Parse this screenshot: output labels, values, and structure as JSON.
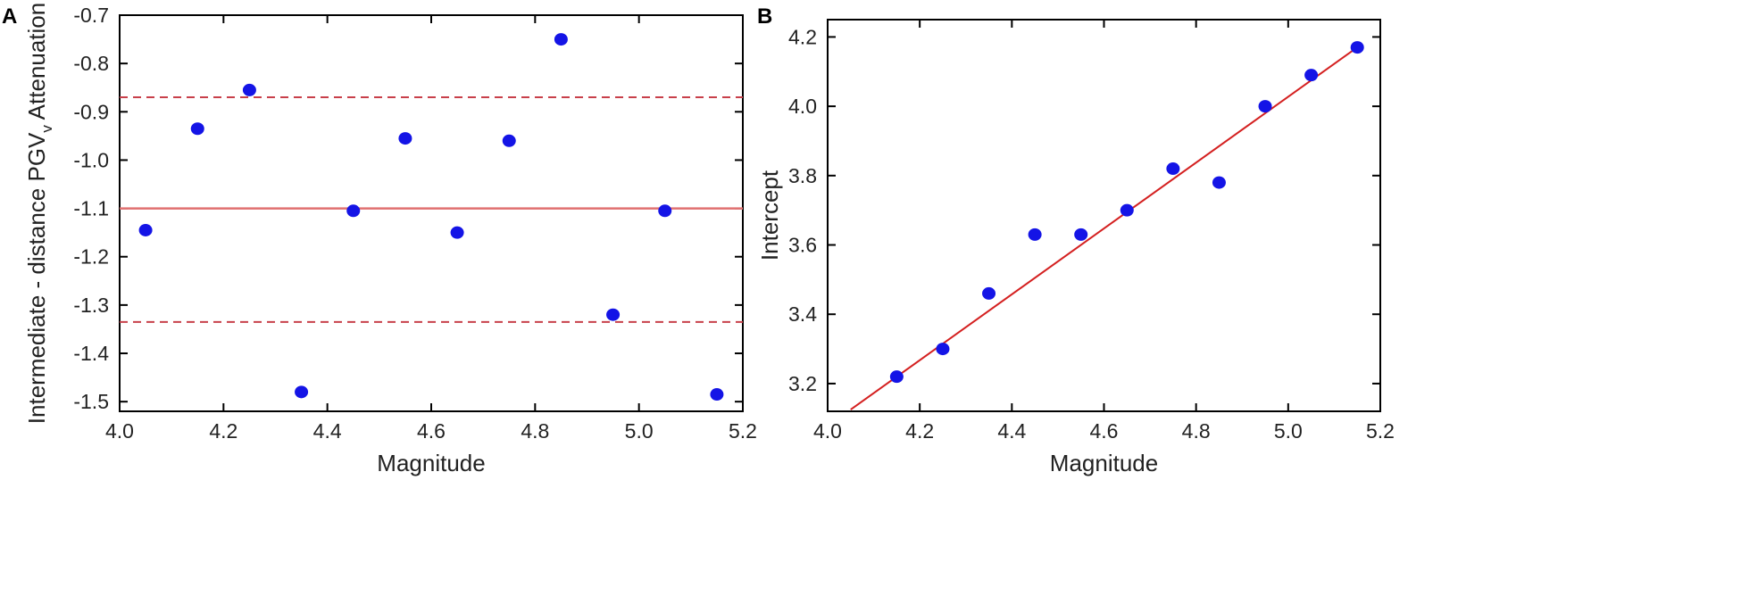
{
  "colors": {
    "point": "#1414e6",
    "mean_line": "#e07070",
    "bound_line": "#c8404a",
    "fit_line": "#d42020",
    "axis": "#000000"
  },
  "chart_data": [
    {
      "panel": "A",
      "type": "scatter",
      "xlabel": "Magnitude",
      "ylabel_main": "Intermediate - distance PGV",
      "ylabel_sub": "v",
      "ylabel_end": " Attenuation",
      "xlim": [
        4.0,
        5.2
      ],
      "ylim": [
        -1.52,
        -0.7
      ],
      "xticks": [
        "4.0",
        "4.2",
        "4.4",
        "4.6",
        "4.8",
        "5.0",
        "5.2"
      ],
      "yticks": [
        "-0.7",
        "-0.8",
        "-0.9",
        "-1.0",
        "-1.1",
        "-1.2",
        "-1.3",
        "-1.4",
        "-1.5"
      ],
      "points": [
        {
          "x": 4.05,
          "y": -1.145
        },
        {
          "x": 4.15,
          "y": -0.935
        },
        {
          "x": 4.25,
          "y": -0.855
        },
        {
          "x": 4.35,
          "y": -1.48
        },
        {
          "x": 4.45,
          "y": -1.105
        },
        {
          "x": 4.55,
          "y": -0.955
        },
        {
          "x": 4.65,
          "y": -1.15
        },
        {
          "x": 4.75,
          "y": -0.96
        },
        {
          "x": 4.85,
          "y": -0.75
        },
        {
          "x": 4.95,
          "y": -1.32
        },
        {
          "x": 5.05,
          "y": -1.105
        },
        {
          "x": 5.15,
          "y": -1.485
        }
      ],
      "hlines": [
        {
          "y": -0.87,
          "style": "dashed"
        },
        {
          "y": -1.1,
          "style": "solid"
        },
        {
          "y": -1.335,
          "style": "dashed"
        }
      ]
    },
    {
      "panel": "B",
      "type": "scatter",
      "xlabel": "Magnitude",
      "ylabel": "Intercept",
      "xlim": [
        4.0,
        5.2
      ],
      "ylim": [
        3.12,
        4.25
      ],
      "xticks": [
        "4.0",
        "4.2",
        "4.4",
        "4.6",
        "4.8",
        "5.0",
        "5.2"
      ],
      "yticks": [
        "3.2",
        "3.4",
        "3.6",
        "3.8",
        "4.0",
        "4.2"
      ],
      "points": [
        {
          "x": 4.15,
          "y": 3.22
        },
        {
          "x": 4.25,
          "y": 3.3
        },
        {
          "x": 4.35,
          "y": 3.46
        },
        {
          "x": 4.45,
          "y": 3.63
        },
        {
          "x": 4.55,
          "y": 3.63
        },
        {
          "x": 4.65,
          "y": 3.7
        },
        {
          "x": 4.75,
          "y": 3.82
        },
        {
          "x": 4.85,
          "y": 3.78
        },
        {
          "x": 4.95,
          "y": 4.0
        },
        {
          "x": 5.05,
          "y": 4.09
        },
        {
          "x": 5.15,
          "y": 4.17
        }
      ],
      "fit_line": {
        "x": [
          4.05,
          5.15
        ],
        "y": [
          3.125,
          4.17
        ]
      }
    }
  ]
}
